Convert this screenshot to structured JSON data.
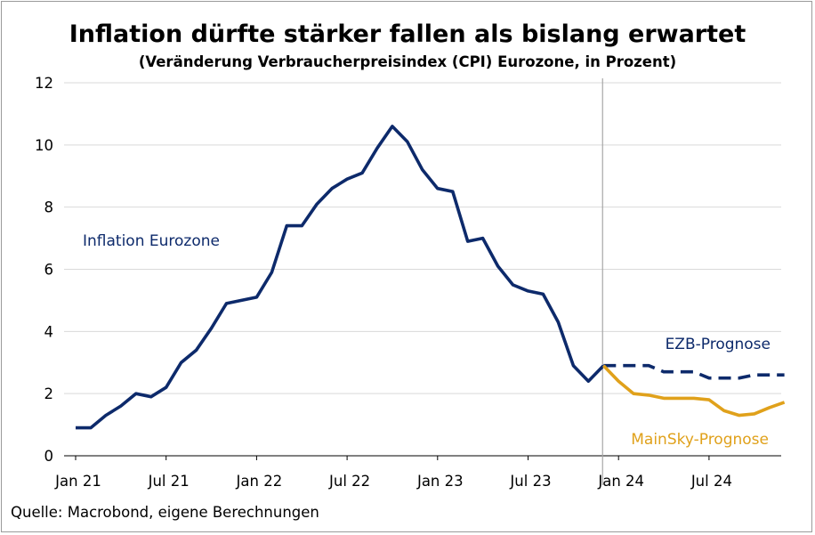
{
  "title": "Inflation dürfte stärker fallen als bislang erwartet",
  "subtitle": "(Veränderung Verbraucherpreisindex (CPI) Eurozone, in Prozent)",
  "source": "Quelle: Macrobond, eigene Berechnungen",
  "colors": {
    "actual": "#0d2a6b",
    "ezb": "#0d2a6b",
    "mainsky": "#e0a11b",
    "grid": "#d9d9d9",
    "divider": "#a6a6a6"
  },
  "chart_data": {
    "type": "line",
    "title": "Inflation dürfte stärker fallen als bislang erwartet",
    "subtitle": "(Veränderung Verbraucherpreisindex (CPI) Eurozone, in Prozent)",
    "xlabel": "",
    "ylabel": "",
    "ylim": [
      0,
      12
    ],
    "yticks": [
      "0",
      "2",
      "4",
      "6",
      "8",
      "10",
      "12"
    ],
    "xticks": [
      "Jan 21",
      "Jul 21",
      "Jan 22",
      "Jul 22",
      "Jan 23",
      "Jul 23",
      "Jan 24",
      "Jul 24"
    ],
    "grid": "horizontal",
    "forecast_start": "2023-12",
    "series": [
      {
        "name": "Inflation Eurozone",
        "style": "solid",
        "x": [
          "2021-01",
          "2021-02",
          "2021-03",
          "2021-04",
          "2021-05",
          "2021-06",
          "2021-07",
          "2021-08",
          "2021-09",
          "2021-10",
          "2021-11",
          "2021-12",
          "2022-01",
          "2022-02",
          "2022-03",
          "2022-04",
          "2022-05",
          "2022-06",
          "2022-07",
          "2022-08",
          "2022-09",
          "2022-10",
          "2022-11",
          "2022-12",
          "2023-01",
          "2023-02",
          "2023-03",
          "2023-04",
          "2023-05",
          "2023-06",
          "2023-07",
          "2023-08",
          "2023-09",
          "2023-10",
          "2023-11",
          "2023-12"
        ],
        "values": [
          0.9,
          0.9,
          1.3,
          1.6,
          2.0,
          1.9,
          2.2,
          3.0,
          3.4,
          4.1,
          4.9,
          5.0,
          5.1,
          5.9,
          7.4,
          7.4,
          8.1,
          8.6,
          8.9,
          9.1,
          9.9,
          10.6,
          10.1,
          9.2,
          8.6,
          8.5,
          6.9,
          7.0,
          6.1,
          5.5,
          5.3,
          5.2,
          4.3,
          2.9,
          2.4,
          2.9
        ]
      },
      {
        "name": "EZB-Prognose",
        "style": "dashed",
        "x": [
          "2023-12",
          "2024-01",
          "2024-02",
          "2024-03",
          "2024-04",
          "2024-05",
          "2024-06",
          "2024-07",
          "2024-08",
          "2024-09",
          "2024-10",
          "2024-11",
          "2024-12"
        ],
        "values": [
          2.9,
          2.9,
          2.9,
          2.9,
          2.7,
          2.7,
          2.7,
          2.5,
          2.5,
          2.5,
          2.6,
          2.6,
          2.6
        ]
      },
      {
        "name": "MainSky-Prognose",
        "style": "solid",
        "x": [
          "2023-12",
          "2024-01",
          "2024-02",
          "2024-03",
          "2024-04",
          "2024-05",
          "2024-06",
          "2024-07",
          "2024-08",
          "2024-09",
          "2024-10",
          "2024-11",
          "2024-12"
        ],
        "values": [
          2.9,
          2.4,
          2.0,
          1.95,
          1.85,
          1.85,
          1.85,
          1.8,
          1.45,
          1.3,
          1.35,
          1.55,
          1.72
        ]
      }
    ]
  }
}
